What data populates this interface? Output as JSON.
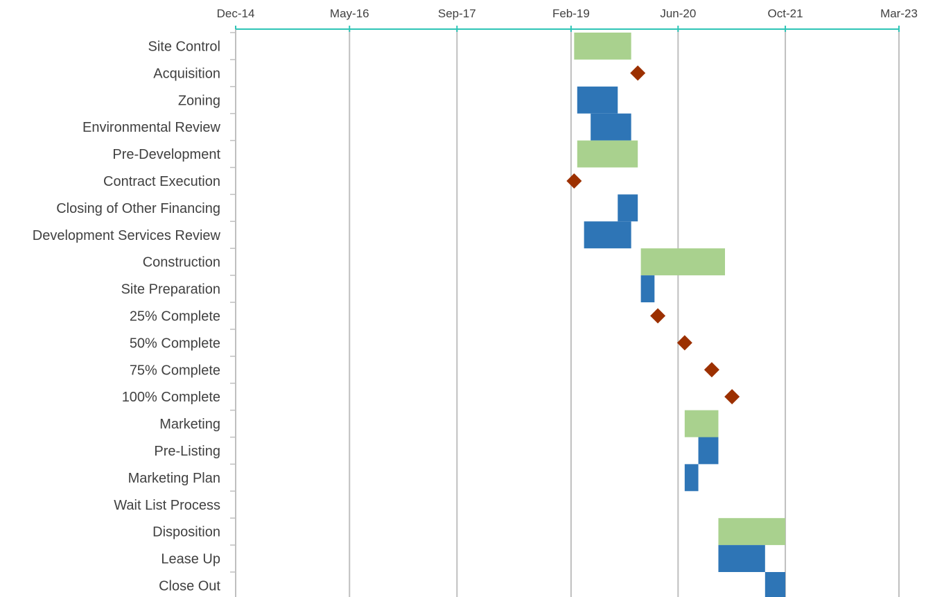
{
  "chart_data": {
    "type": "gantt",
    "x_axis": {
      "tick_labels": [
        "Dec-14",
        "May-16",
        "Sep-17",
        "Feb-19",
        "Jun-20",
        "Oct-21",
        "Mar-23"
      ],
      "tick_values": [
        "2014-12-01",
        "2016-05-01",
        "2017-09-01",
        "2019-02-01",
        "2020-06-01",
        "2021-10-01",
        "2023-03-01"
      ],
      "range": [
        "2014-12-01",
        "2023-03-01"
      ],
      "axis_color": "#2ec4b6"
    },
    "grid": true,
    "colors": {
      "phase": "#a9d18e",
      "task": "#2e75b6",
      "milestone": "#9c3000"
    },
    "tasks": [
      {
        "label": "Site Control",
        "kind": "phase",
        "start": "2019-02-15",
        "end": "2019-11-01"
      },
      {
        "label": "Acquisition",
        "kind": "milestone",
        "date": "2019-12-01"
      },
      {
        "label": "Zoning",
        "kind": "task",
        "start": "2019-03-01",
        "end": "2019-09-01"
      },
      {
        "label": "Environmental Review",
        "kind": "task",
        "start": "2019-05-01",
        "end": "2019-11-01"
      },
      {
        "label": "Pre-Development",
        "kind": "phase",
        "start": "2019-03-01",
        "end": "2019-12-01"
      },
      {
        "label": "Contract Execution",
        "kind": "milestone",
        "date": "2019-02-15"
      },
      {
        "label": "Closing of Other Financing",
        "kind": "task",
        "start": "2019-09-01",
        "end": "2019-12-01"
      },
      {
        "label": "Development Services Review",
        "kind": "task",
        "start": "2019-04-01",
        "end": "2019-11-01"
      },
      {
        "label": "Construction",
        "kind": "phase",
        "start": "2019-12-15",
        "end": "2020-12-31"
      },
      {
        "label": "Site Preparation",
        "kind": "task",
        "start": "2019-12-15",
        "end": "2020-02-15"
      },
      {
        "label": "25% Complete",
        "kind": "milestone",
        "date": "2020-03-01"
      },
      {
        "label": "50% Complete",
        "kind": "milestone",
        "date": "2020-07-01"
      },
      {
        "label": "75% Complete",
        "kind": "milestone",
        "date": "2020-11-01"
      },
      {
        "label": "100% Complete",
        "kind": "milestone",
        "date": "2021-02-01"
      },
      {
        "label": "Marketing",
        "kind": "phase",
        "start": "2020-07-01",
        "end": "2020-12-01"
      },
      {
        "label": "Pre-Listing",
        "kind": "task",
        "start": "2020-09-01",
        "end": "2020-12-01"
      },
      {
        "label": "Marketing Plan",
        "kind": "task",
        "start": "2020-07-01",
        "end": "2020-09-01"
      },
      {
        "label": "Wait List Process",
        "kind": "none"
      },
      {
        "label": "Disposition",
        "kind": "phase",
        "start": "2020-12-01",
        "end": "2021-10-01"
      },
      {
        "label": "Lease Up",
        "kind": "task",
        "start": "2020-12-01",
        "end": "2021-07-01"
      },
      {
        "label": "Close Out",
        "kind": "task",
        "start": "2021-07-01",
        "end": "2021-10-01"
      }
    ]
  }
}
